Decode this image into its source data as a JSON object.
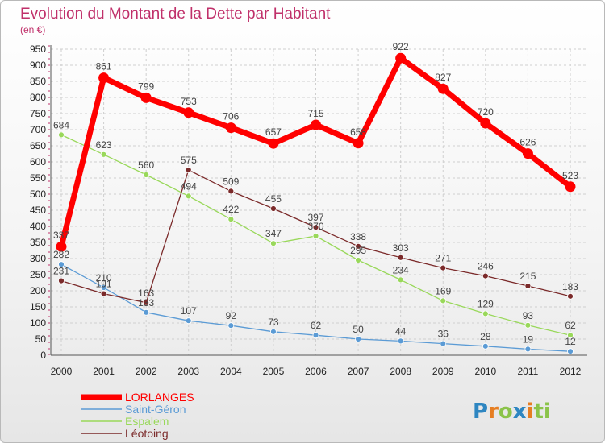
{
  "chart_data": {
    "type": "line",
    "title": "Evolution du Montant de la Dette par Habitant",
    "subtitle": "(en €)",
    "xlabel": "",
    "ylabel": "",
    "ylim": [
      0,
      950
    ],
    "yticks": [
      0,
      50,
      100,
      150,
      200,
      250,
      300,
      350,
      400,
      450,
      500,
      550,
      600,
      650,
      700,
      750,
      800,
      850,
      900,
      950
    ],
    "x": [
      "2000",
      "2001",
      "2002",
      "2003",
      "2004",
      "2005",
      "2006",
      "2007",
      "2008",
      "2009",
      "2010",
      "2011",
      "2012"
    ],
    "grid": true,
    "legend_position": "bottom-left",
    "series": [
      {
        "name": "LORLANGES",
        "color": "#ff0000",
        "values": [
          337,
          861,
          799,
          753,
          706,
          657,
          715,
          658,
          922,
          827,
          720,
          626,
          523
        ]
      },
      {
        "name": "Saint-Géron",
        "color": "#5b9bd5",
        "values": [
          282,
          210,
          133,
          107,
          92,
          73,
          62,
          50,
          44,
          36,
          28,
          19,
          12
        ]
      },
      {
        "name": "Espalem",
        "color": "#99d85a",
        "values": [
          684,
          623,
          560,
          494,
          422,
          347,
          370,
          295,
          234,
          169,
          129,
          93,
          62
        ]
      },
      {
        "name": "Léotoing",
        "color": "#7b2a2a",
        "values": [
          231,
          191,
          163,
          575,
          509,
          455,
          397,
          338,
          303,
          271,
          246,
          215,
          183
        ]
      }
    ]
  },
  "logo": {
    "text": "Proxiti",
    "letters": [
      "P",
      "r",
      "o",
      "x",
      "i",
      "t",
      "i"
    ],
    "colors": [
      "#2e86c1",
      "#e67e22",
      "#8bc34a",
      "#2e86c1",
      "#e67e22",
      "#8bc34a",
      "#8bc34a"
    ]
  }
}
